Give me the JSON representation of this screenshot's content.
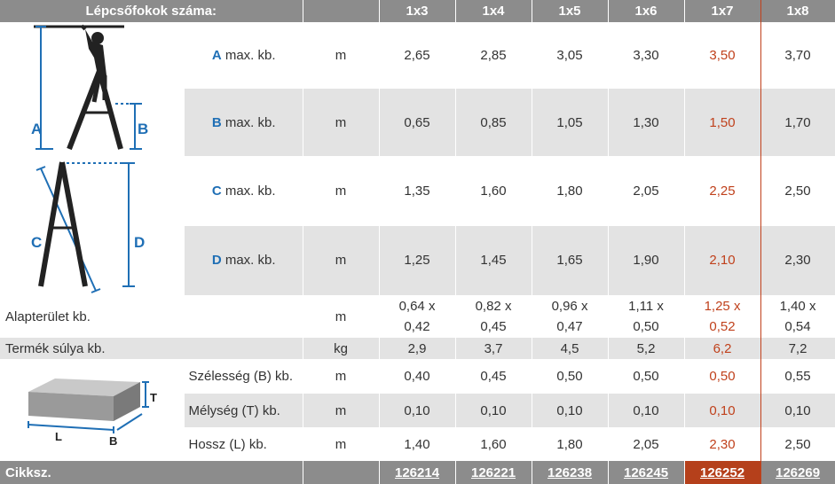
{
  "header": {
    "title": "Lépcsőfokok száma:",
    "columns": [
      "1x3",
      "1x4",
      "1x5",
      "1x6",
      "1x7",
      "1x8"
    ]
  },
  "labels": {
    "letter_a": "A",
    "letter_b": "B",
    "letter_c": "C",
    "letter_d": "D",
    "max_kb": "max. kb."
  },
  "diagram_letters": {
    "a": "A",
    "b": "B",
    "c": "C",
    "d": "D",
    "t": "T",
    "l": "L",
    "bb": "B"
  },
  "rows": {
    "a": {
      "unit": "m",
      "values": [
        "2,65",
        "2,85",
        "3,05",
        "3,30",
        "3,50",
        "3,70"
      ]
    },
    "b": {
      "unit": "m",
      "values": [
        "0,65",
        "0,85",
        "1,05",
        "1,30",
        "1,50",
        "1,70"
      ]
    },
    "c": {
      "unit": "m",
      "values": [
        "1,35",
        "1,60",
        "1,80",
        "2,05",
        "2,25",
        "2,50"
      ]
    },
    "d": {
      "unit": "m",
      "values": [
        "1,25",
        "1,45",
        "1,65",
        "1,90",
        "2,10",
        "2,30"
      ]
    },
    "area": {
      "label": "Alapterület kb.",
      "unit": "m",
      "top": [
        "0,64 x",
        "0,82 x",
        "0,96 x",
        "1,11 x",
        "1,25 x",
        "1,40 x"
      ],
      "bottom": [
        "0,42",
        "0,45",
        "0,47",
        "0,50",
        "0,52",
        "0,54"
      ]
    },
    "weight": {
      "label": "Termék súlya kb.",
      "unit": "kg",
      "values": [
        "2,9",
        "3,7",
        "4,5",
        "5,2",
        "6,2",
        "7,2"
      ]
    },
    "width": {
      "label": "Szélesség (B) kb.",
      "unit": "m",
      "values": [
        "0,40",
        "0,45",
        "0,50",
        "0,50",
        "0,50",
        "0,55"
      ]
    },
    "depth": {
      "label": "Mélység (T) kb.",
      "unit": "m",
      "values": [
        "0,10",
        "0,10",
        "0,10",
        "0,10",
        "0,10",
        "0,10"
      ]
    },
    "length": {
      "label": "Hossz (L) kb.",
      "unit": "m",
      "values": [
        "1,40",
        "1,60",
        "1,80",
        "2,05",
        "2,30",
        "2,50"
      ]
    }
  },
  "footer": {
    "label": "Cikksz.",
    "codes": [
      "126214",
      "126221",
      "126238",
      "126245",
      "126252",
      "126269"
    ]
  },
  "colors": {
    "accent": "#b5401b",
    "header": "#8c8c8c",
    "band": "#e3e3e3",
    "letter": "#1f6fb5"
  },
  "highlight_column": "1x7"
}
